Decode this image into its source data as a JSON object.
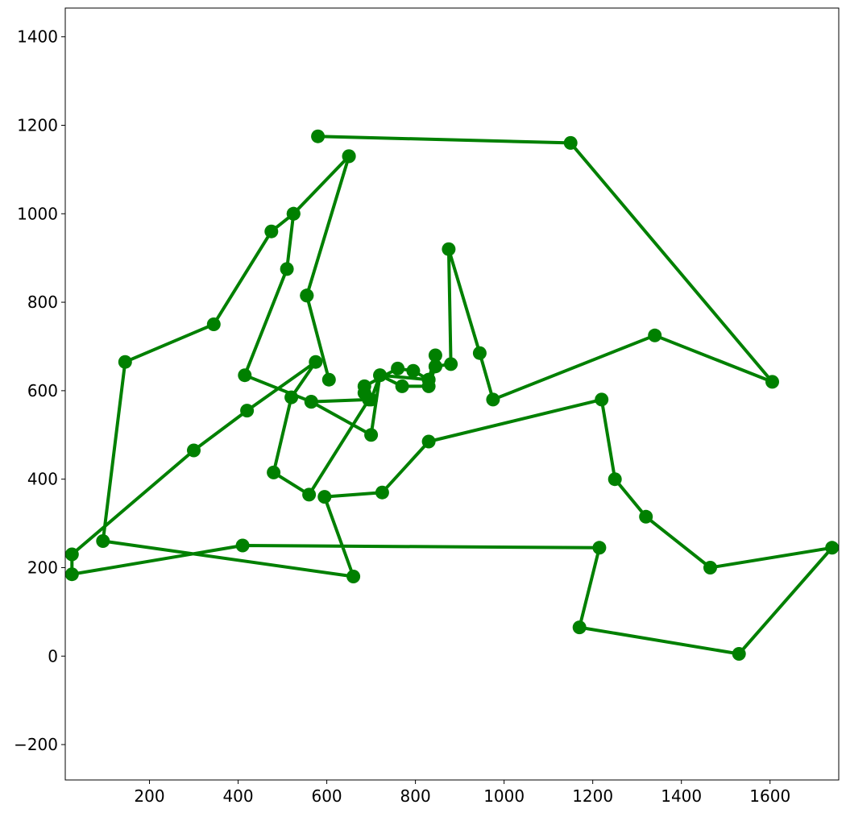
{
  "chart_data": {
    "type": "line",
    "title": "",
    "xlabel": "",
    "ylabel": "",
    "xlim": [
      10,
      1755
    ],
    "ylim": [
      -280,
      1465
    ],
    "xticks": [
      200,
      400,
      600,
      800,
      1000,
      1200,
      1400,
      1600
    ],
    "yticks": [
      -200,
      0,
      200,
      400,
      600,
      800,
      1000,
      1200,
      1400
    ],
    "grid": false,
    "legend": "none",
    "series": [
      {
        "color": "#008000",
        "marker": "circle",
        "points": [
          [
            580,
            1175
          ],
          [
            1150,
            1160
          ],
          [
            1605,
            620
          ],
          [
            1340,
            725
          ],
          [
            975,
            580
          ],
          [
            945,
            685
          ],
          [
            875,
            920
          ],
          [
            880,
            660
          ],
          [
            845,
            655
          ],
          [
            830,
            610
          ],
          [
            770,
            610
          ],
          [
            720,
            635
          ],
          [
            700,
            580
          ],
          [
            685,
            595
          ],
          [
            685,
            610
          ],
          [
            760,
            650
          ],
          [
            795,
            645
          ],
          [
            830,
            625
          ],
          [
            845,
            680
          ],
          [
            845,
            655
          ],
          [
            830,
            625
          ],
          [
            720,
            635
          ],
          [
            700,
            500
          ],
          [
            565,
            575
          ],
          [
            415,
            635
          ],
          [
            510,
            875
          ],
          [
            525,
            1000
          ],
          [
            650,
            1130
          ],
          [
            555,
            815
          ],
          [
            605,
            625
          ],
          [
            555,
            815
          ],
          [
            650,
            1130
          ],
          [
            525,
            1000
          ],
          [
            475,
            960
          ],
          [
            345,
            750
          ],
          [
            145,
            665
          ],
          [
            95,
            260
          ],
          [
            660,
            180
          ],
          [
            595,
            360
          ],
          [
            725,
            370
          ],
          [
            830,
            485
          ],
          [
            1220,
            580
          ],
          [
            1250,
            400
          ],
          [
            1320,
            315
          ],
          [
            1465,
            200
          ],
          [
            1740,
            245
          ],
          [
            1530,
            5
          ],
          [
            1170,
            65
          ],
          [
            1215,
            245
          ],
          [
            410,
            250
          ],
          [
            25,
            185
          ],
          [
            25,
            230
          ],
          [
            300,
            465
          ],
          [
            420,
            555
          ],
          [
            575,
            665
          ],
          [
            520,
            585
          ],
          [
            480,
            415
          ],
          [
            560,
            365
          ],
          [
            695,
            580
          ],
          [
            565,
            575
          ]
        ]
      }
    ]
  }
}
